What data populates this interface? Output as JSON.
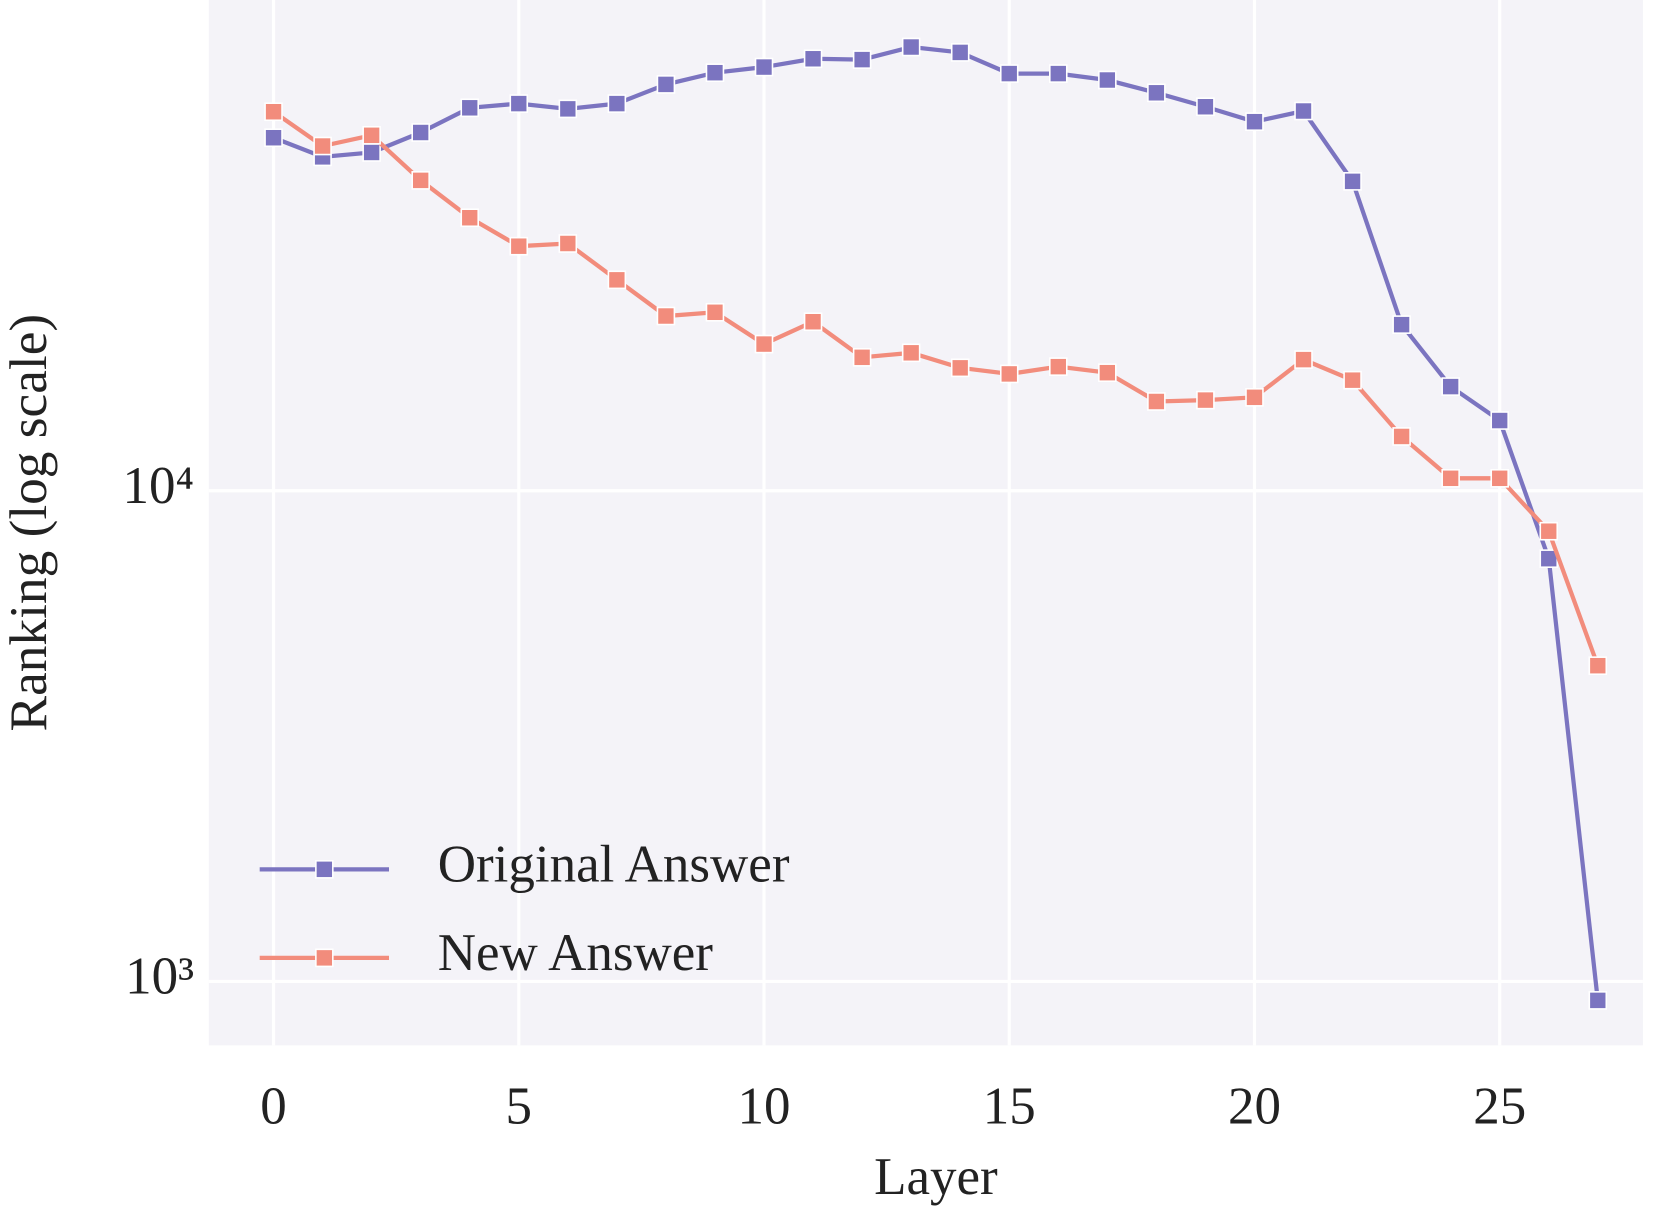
{
  "chart_data": {
    "type": "line",
    "x_label": "Layer",
    "y_label": "Ranking (log scale)",
    "x": [
      0,
      1,
      2,
      3,
      4,
      5,
      6,
      7,
      8,
      9,
      10,
      11,
      12,
      13,
      14,
      15,
      16,
      17,
      18,
      19,
      20,
      21,
      22,
      23,
      24,
      25,
      26,
      27
    ],
    "series": [
      {
        "name": "Original Answer",
        "color": "#7b74c0",
        "values": [
          52400,
          47900,
          48900,
          53700,
          60300,
          61500,
          60000,
          61500,
          67300,
          71100,
          73000,
          75900,
          75600,
          80200,
          78200,
          70800,
          70800,
          68700,
          64700,
          60600,
          56500,
          59400,
          42700,
          21800,
          16300,
          13900,
          7270,
          915
        ]
      },
      {
        "name": "New Answer",
        "color": "#f28c7c",
        "values": [
          59200,
          50400,
          53000,
          42900,
          36000,
          31500,
          31900,
          26900,
          22700,
          23100,
          19900,
          22100,
          18700,
          19100,
          17800,
          17300,
          17900,
          17400,
          15200,
          15300,
          15500,
          18500,
          16800,
          12900,
          10600,
          10600,
          8270,
          4400
        ]
      }
    ],
    "xlim": [
      -1.32,
      27.92
    ],
    "xticks": [
      0,
      5,
      10,
      15,
      20,
      25
    ],
    "ylim": [
      741,
      100000
    ],
    "yscale": "log",
    "yticks": [
      {
        "value": 1000,
        "label": "10³"
      },
      {
        "value": 10000,
        "label": "10⁴"
      }
    ],
    "grid": true,
    "legend": "lower left"
  }
}
